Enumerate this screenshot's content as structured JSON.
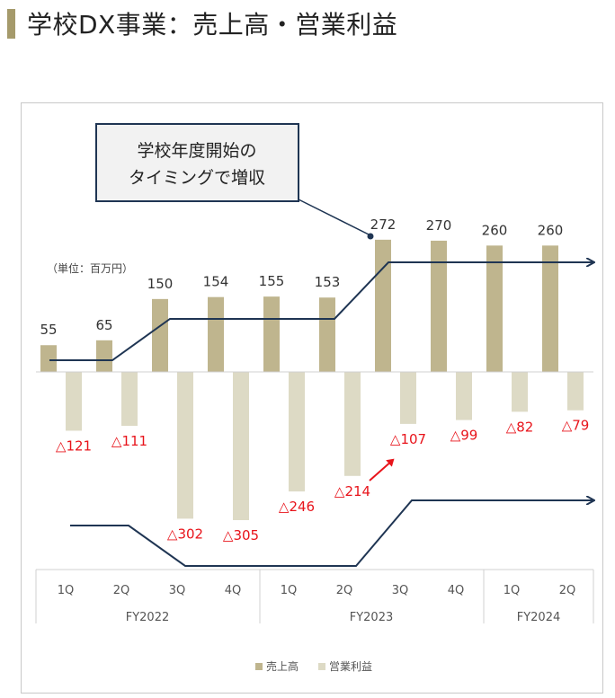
{
  "title": "学校DX事業：売上高・営業利益",
  "callout": {
    "line1": "学校年度開始の",
    "line2": "タイミングで増収"
  },
  "unit_label": "（単位：百万円）",
  "colors": {
    "sales": "#bfb58e",
    "profit": "#dddac5",
    "trend": "#1f3553",
    "negative_label": "#e8141b",
    "accent_bar": "#a59a6b"
  },
  "chart_data": {
    "type": "bar",
    "categories": [
      "1Q",
      "2Q",
      "3Q",
      "4Q",
      "1Q",
      "2Q",
      "3Q",
      "4Q",
      "1Q",
      "2Q"
    ],
    "groups": [
      {
        "label": "FY2022",
        "quarters": [
          "1Q",
          "2Q",
          "3Q",
          "4Q"
        ]
      },
      {
        "label": "FY2023",
        "quarters": [
          "1Q",
          "2Q",
          "3Q",
          "4Q"
        ]
      },
      {
        "label": "FY2024",
        "quarters": [
          "1Q",
          "2Q"
        ]
      }
    ],
    "series": [
      {
        "name": "売上高",
        "values": [
          55,
          65,
          150,
          154,
          155,
          153,
          272,
          270,
          260,
          260
        ],
        "labels": [
          "55",
          "65",
          "150",
          "154",
          "155",
          "153",
          "272",
          "270",
          "260",
          "260"
        ]
      },
      {
        "name": "営業利益",
        "values": [
          -121,
          -111,
          -302,
          -305,
          -246,
          -214,
          -107,
          -99,
          -82,
          -79
        ],
        "labels": [
          "△121",
          "△111",
          "△302",
          "△305",
          "△246",
          "△214",
          "△107",
          "△99",
          "△82",
          "△79"
        ]
      }
    ],
    "legend_position": "bottom"
  }
}
